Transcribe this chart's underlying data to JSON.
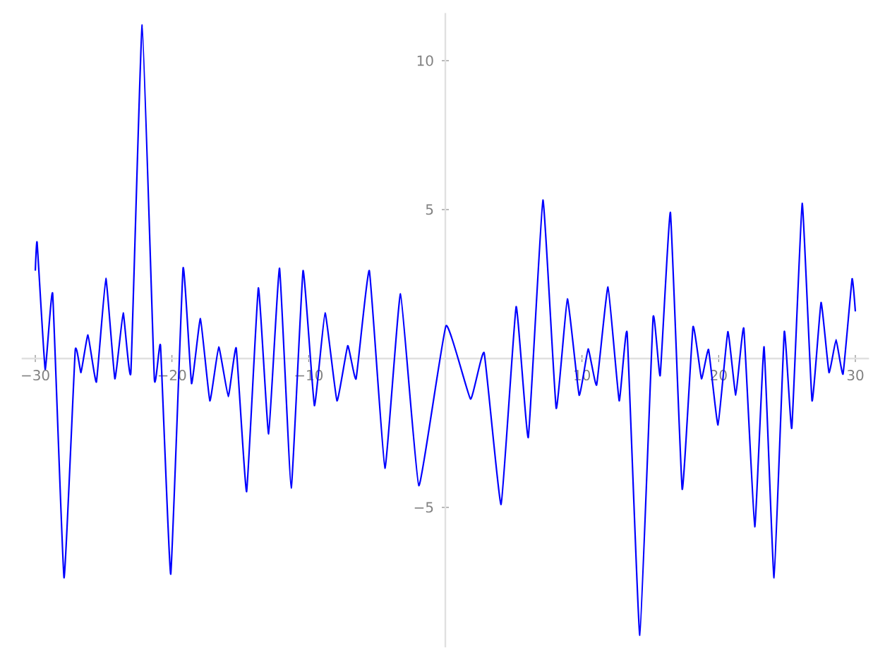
{
  "chart_data": {
    "type": "line",
    "x": [
      -30,
      -29.87,
      -29.28,
      -28.73,
      -27.9,
      -27.08,
      -26.66,
      -26.15,
      -25.53,
      -24.84,
      -24.18,
      -23.57,
      -23.01,
      -22.18,
      -21.29,
      -20.84,
      -20.09,
      -19.19,
      -18.57,
      -17.92,
      -17.23,
      -16.58,
      -15.88,
      -15.3,
      -14.54,
      -13.68,
      -12.93,
      -12.13,
      -11.28,
      -10.41,
      -9.58,
      -8.8,
      -7.93,
      -7.14,
      -6.53,
      -5.56,
      -4.42,
      -3.28,
      -1.94,
      0.05,
      1.84,
      2.84,
      4.08,
      5.18,
      6.07,
      7.14,
      8.11,
      8.93,
      9.79,
      10.45,
      11.07,
      11.9,
      12.72,
      13.3,
      14.23,
      15.2,
      15.72,
      16.47,
      17.33,
      18.12,
      18.74,
      19.26,
      19.95,
      20.67,
      21.25,
      21.84,
      22.64,
      23.32,
      24.05,
      24.8,
      25.35,
      26.11,
      26.83,
      27.49,
      28.07,
      28.59,
      29.1,
      29.76,
      30
    ],
    "series": [
      {
        "color": "#0000ff",
        "values": [
          2.95,
          3.9,
          -0.36,
          2.17,
          -7.36,
          0.27,
          -0.47,
          0.79,
          -0.79,
          2.69,
          -0.68,
          1.53,
          -0.47,
          11.2,
          -0.68,
          0.43,
          -7.24,
          3.03,
          -0.84,
          1.34,
          -1.42,
          0.39,
          -1.28,
          0.35,
          -4.47,
          2.37,
          -2.53,
          3.03,
          -4.35,
          2.95,
          -1.58,
          1.53,
          -1.42,
          0.43,
          -0.68,
          2.95,
          -3.68,
          2.17,
          -4.27,
          1.1,
          -1.36,
          0.19,
          -4.9,
          1.74,
          -2.65,
          5.32,
          -1.67,
          2.0,
          -1.23,
          0.32,
          -0.89,
          2.4,
          -1.42,
          0.87,
          -9.29,
          1.37,
          -0.57,
          4.9,
          -4.39,
          1.06,
          -0.68,
          0.3,
          -2.23,
          0.9,
          -1.23,
          1.01,
          -5.65,
          0.39,
          -7.36,
          0.9,
          -2.34,
          5.21,
          -1.42,
          1.88,
          -0.47,
          0.63,
          -0.52,
          2.67,
          1.58
        ]
      }
    ],
    "xlim": [
      -31,
      31
    ],
    "ylim": [
      -9.7,
      11.6
    ],
    "xticks": [
      {
        "value": -30,
        "label": "−30"
      },
      {
        "value": -20,
        "label": "−20"
      },
      {
        "value": -10,
        "label": "−10"
      },
      10,
      20,
      30
    ],
    "yticks": [
      {
        "value": -5,
        "label": "−5"
      },
      5,
      10
    ]
  }
}
